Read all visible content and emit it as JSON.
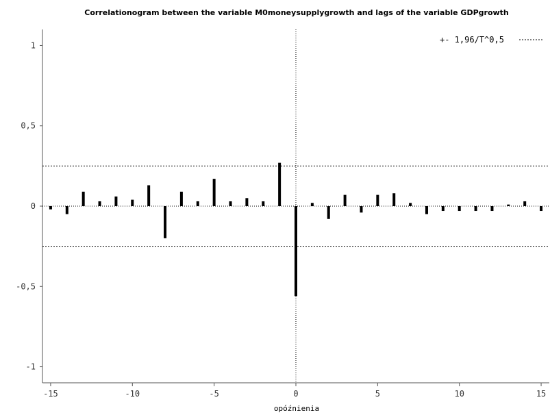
{
  "chart_data": {
    "type": "bar",
    "title": "Correlationogram between the variable M0moneysupplygrowth and lags of the variable GDPgrowth",
    "xlabel": "opóźnienia",
    "ylabel": "",
    "x": [
      -15,
      -14,
      -13,
      -12,
      -11,
      -10,
      -9,
      -8,
      -7,
      -6,
      -5,
      -4,
      -3,
      -2,
      -1,
      0,
      1,
      2,
      3,
      4,
      5,
      6,
      7,
      8,
      9,
      10,
      11,
      12,
      13,
      14,
      15
    ],
    "values": [
      -0.02,
      -0.05,
      0.09,
      0.03,
      0.06,
      0.04,
      0.13,
      -0.2,
      0.09,
      0.03,
      0.17,
      0.03,
      0.05,
      0.03,
      0.27,
      -0.56,
      0.02,
      -0.08,
      0.07,
      -0.04,
      0.07,
      0.08,
      0.02,
      -0.05,
      -0.03,
      -0.03,
      -0.03,
      -0.03,
      0.01,
      0.03,
      -0.03
    ],
    "xlim": [
      -15.5,
      15.5
    ],
    "ylim": [
      -1.1,
      1.1
    ],
    "xticks": [
      -15,
      -10,
      -5,
      0,
      5,
      10,
      15
    ],
    "xtick_labels": [
      "-15",
      "-10",
      "-5",
      "0",
      "5",
      "10",
      "15"
    ],
    "yticks": [
      -1,
      -0.5,
      0,
      0.5,
      1
    ],
    "ytick_labels": [
      "-1",
      "-0,5",
      "0",
      "0,5",
      "1"
    ],
    "band": 0.25,
    "legend": {
      "label": "+- 1,96/T^0,5",
      "placement": "top-right"
    },
    "bar_color": "#000000",
    "grid": false
  }
}
